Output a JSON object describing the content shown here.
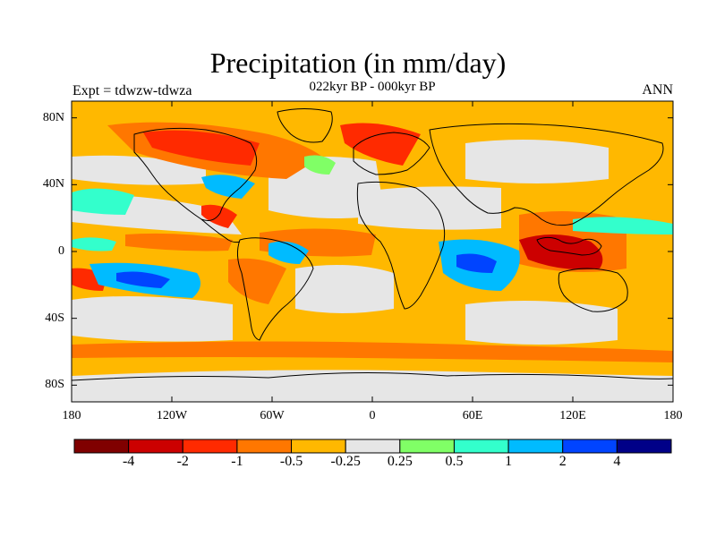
{
  "header": {
    "title": "Precipitation (in mm/day)",
    "subtitle": "022kyr BP - 000kyr BP",
    "left_label": "Expt = tdwzw-tdwza",
    "right_label": "ANN"
  },
  "axes": {
    "lat_ticks": [
      {
        "label": "80N",
        "value": 80
      },
      {
        "label": "40N",
        "value": 40
      },
      {
        "label": "0",
        "value": 0
      },
      {
        "label": "40S",
        "value": -40
      },
      {
        "label": "80S",
        "value": -80
      }
    ],
    "lon_ticks": [
      {
        "label": "180",
        "value": -180
      },
      {
        "label": "120W",
        "value": -120
      },
      {
        "label": "60W",
        "value": -60
      },
      {
        "label": "0",
        "value": 0
      },
      {
        "label": "60E",
        "value": 60
      },
      {
        "label": "120E",
        "value": 120
      },
      {
        "label": "180",
        "value": 180
      }
    ],
    "lat_range": [
      -90,
      90
    ],
    "lon_range": [
      -180,
      180
    ]
  },
  "colorbar": {
    "colors": [
      "#800000",
      "#cc0000",
      "#ff2a00",
      "#ff7700",
      "#ffb800",
      "#e6e6e6",
      "#80ff66",
      "#33ffcc",
      "#00bbff",
      "#0044ff",
      "#000088"
    ],
    "labels": [
      "-4",
      "-2",
      "-1",
      "-0.5",
      "-0.25",
      "0.25",
      "0.5",
      "1",
      "2",
      "4"
    ]
  },
  "map": {
    "background_color": "#ffb800",
    "coastline_color": "#000000"
  }
}
